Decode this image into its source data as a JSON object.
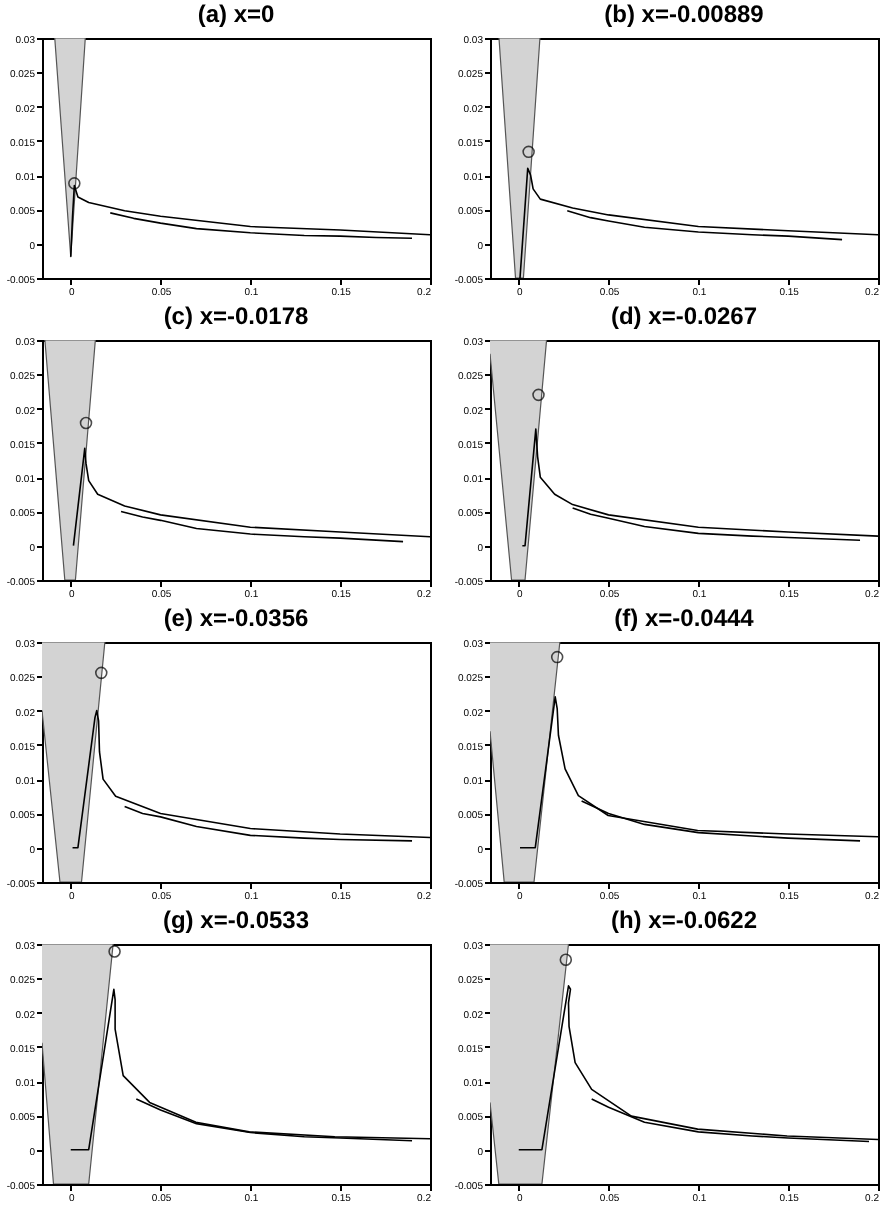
{
  "chart_data": [
    {
      "type": "line",
      "title": "(a) x=0",
      "xlim": [
        -0.016,
        0.2
      ],
      "ylim": [
        -0.005,
        0.03
      ],
      "xticks": [
        0,
        0.05,
        0.1,
        0.15,
        0.2
      ],
      "yticks": [
        -0.005,
        0,
        0.005,
        0.01,
        0.015,
        0.02,
        0.025,
        0.03
      ],
      "grid": false,
      "series": [
        {
          "type": "area",
          "color": "#d3d3d3",
          "x": [
            -0.0089,
            0.0081,
            0,
            -0.0089
          ],
          "values": [
            0.03,
            0.03,
            -0.0019,
            0.03
          ]
        },
        {
          "type": "line",
          "color": "#000000",
          "x": [
            0,
            0.001,
            0.002,
            0.004,
            0.01,
            0.03,
            0.05,
            0.1,
            0.15,
            0.2
          ],
          "values": [
            -0.0019,
            0.004,
            0.0085,
            0.0068,
            0.006,
            0.0048,
            0.004,
            0.0025,
            0.002,
            0.0013
          ]
        },
        {
          "type": "line",
          "color": "#000000",
          "x": [
            0.022,
            0.035,
            0.05,
            0.07,
            0.1,
            0.13,
            0.15,
            0.17,
            0.19
          ],
          "values": [
            0.0045,
            0.0037,
            0.003,
            0.0022,
            0.0016,
            0.0012,
            0.0011,
            0.0009,
            0.0008
          ]
        },
        {
          "type": "scatter",
          "marker": "circle",
          "color": "#000000",
          "x": [
            0.002
          ],
          "values": [
            0.0088
          ]
        }
      ]
    },
    {
      "type": "line",
      "title": "(b) x=-0.00889",
      "xlim": [
        -0.016,
        0.2
      ],
      "ylim": [
        -0.005,
        0.03
      ],
      "xticks": [
        0,
        0.05,
        0.1,
        0.15,
        0.2
      ],
      "yticks": [
        -0.005,
        0,
        0.005,
        0.01,
        0.015,
        0.02,
        0.025,
        0.03
      ],
      "grid": false,
      "series": [
        {
          "type": "area",
          "color": "#d3d3d3",
          "x": [
            -0.011,
            0.0118,
            0.0026,
            -0.0018,
            -0.011
          ],
          "values": [
            0.03,
            0.03,
            -0.005,
            -0.005,
            0.03
          ]
        },
        {
          "type": "line",
          "color": "#000000",
          "x": [
            0.0007,
            0.005,
            0.0066,
            0.008,
            0.012,
            0.03,
            0.05,
            0.1,
            0.15,
            0.2
          ],
          "values": [
            -0.005,
            0.011,
            0.01,
            0.008,
            0.0065,
            0.0052,
            0.0042,
            0.0025,
            0.0019,
            0.0013
          ]
        },
        {
          "type": "line",
          "color": "#000000",
          "x": [
            0.027,
            0.04,
            0.05,
            0.07,
            0.1,
            0.13,
            0.15,
            0.18
          ],
          "values": [
            0.0048,
            0.0038,
            0.0033,
            0.0024,
            0.0017,
            0.0013,
            0.0011,
            0.0006
          ]
        },
        {
          "type": "scatter",
          "marker": "circle",
          "color": "#000000",
          "x": [
            0.0055
          ],
          "values": [
            0.0134
          ]
        }
      ]
    },
    {
      "type": "line",
      "title": "(c) x=-0.0178",
      "xlim": [
        -0.016,
        0.2
      ],
      "ylim": [
        -0.005,
        0.03
      ],
      "xticks": [
        0,
        0.05,
        0.1,
        0.15,
        0.2
      ],
      "yticks": [
        -0.005,
        0,
        0.005,
        0.01,
        0.015,
        0.02,
        0.025,
        0.03
      ],
      "grid": false,
      "series": [
        {
          "type": "area",
          "color": "#d3d3d3",
          "x": [
            -0.0144,
            0.0137,
            0.0026,
            -0.0033,
            -0.0144
          ],
          "values": [
            0.03,
            0.03,
            -0.005,
            -0.005,
            0.03
          ]
        },
        {
          "type": "line",
          "color": "#000000",
          "x": [
            0.0015,
            0.0078,
            0.0085,
            0.01,
            0.015,
            0.03,
            0.05,
            0.1,
            0.15,
            0.2
          ],
          "values": [
            0,
            0.0142,
            0.012,
            0.0095,
            0.0075,
            0.0058,
            0.0045,
            0.0027,
            0.002,
            0.0013
          ]
        },
        {
          "type": "line",
          "color": "#000000",
          "x": [
            0.028,
            0.04,
            0.05,
            0.07,
            0.1,
            0.13,
            0.15,
            0.185
          ],
          "values": [
            0.005,
            0.0042,
            0.0037,
            0.0025,
            0.0017,
            0.0013,
            0.0011,
            0.0006
          ]
        },
        {
          "type": "scatter",
          "marker": "circle",
          "color": "#000000",
          "x": [
            0.0085
          ],
          "values": [
            0.0179
          ]
        }
      ]
    },
    {
      "type": "line",
      "title": "(d) x=-0.0267",
      "xlim": [
        -0.016,
        0.2
      ],
      "ylim": [
        -0.005,
        0.03
      ],
      "xticks": [
        0,
        0.05,
        0.1,
        0.15,
        0.2
      ],
      "yticks": [
        -0.005,
        0,
        0.005,
        0.01,
        0.015,
        0.02,
        0.025,
        0.03
      ],
      "grid": false,
      "series": [
        {
          "type": "area",
          "color": "#d3d3d3",
          "x": [
            -0.016,
            0.0155,
            0.0035,
            -0.004,
            -0.016
          ],
          "values": [
            0.03,
            0.03,
            -0.005,
            -0.005,
            0.028
          ]
        },
        {
          "type": "line",
          "color": "#000000",
          "x": [
            0.002,
            0.0035,
            0.0095,
            0.0105,
            0.012,
            0.02,
            0.03,
            0.05,
            0.1,
            0.15,
            0.2
          ],
          "values": [
            0,
            0,
            0.017,
            0.013,
            0.01,
            0.0075,
            0.006,
            0.0045,
            0.0027,
            0.002,
            0.0014
          ]
        },
        {
          "type": "line",
          "color": "#000000",
          "x": [
            0.03,
            0.04,
            0.05,
            0.07,
            0.1,
            0.13,
            0.15,
            0.19
          ],
          "values": [
            0.0055,
            0.0046,
            0.004,
            0.0028,
            0.0018,
            0.0014,
            0.0012,
            0.0008
          ]
        },
        {
          "type": "scatter",
          "marker": "circle",
          "color": "#000000",
          "x": [
            0.011
          ],
          "values": [
            0.022
          ]
        }
      ]
    },
    {
      "type": "line",
      "title": "(e) x=-0.0356",
      "xlim": [
        -0.016,
        0.2
      ],
      "ylim": [
        -0.005,
        0.03
      ],
      "xticks": [
        0,
        0.05,
        0.1,
        0.15,
        0.2
      ],
      "yticks": [
        -0.005,
        0,
        0.005,
        0.01,
        0.015,
        0.02,
        0.025,
        0.03
      ],
      "grid": false,
      "series": [
        {
          "type": "area",
          "color": "#d3d3d3",
          "x": [
            -0.016,
            0.019,
            0.006,
            -0.006,
            -0.016
          ],
          "values": [
            0.03,
            0.03,
            -0.005,
            -0.005,
            0.02
          ]
        },
        {
          "type": "line",
          "color": "#000000",
          "x": [
            0.001,
            0.004,
            0.0135,
            0.0145,
            0.0155,
            0.016,
            0.018,
            0.025,
            0.05,
            0.1,
            0.15,
            0.2
          ],
          "values": [
            0,
            0,
            0.019,
            0.02,
            0.0185,
            0.014,
            0.01,
            0.0075,
            0.005,
            0.0028,
            0.002,
            0.0015
          ]
        },
        {
          "type": "line",
          "color": "#000000",
          "x": [
            0.03,
            0.04,
            0.05,
            0.07,
            0.1,
            0.13,
            0.15,
            0.19
          ],
          "values": [
            0.006,
            0.005,
            0.0045,
            0.0031,
            0.0018,
            0.0014,
            0.0012,
            0.001
          ]
        },
        {
          "type": "scatter",
          "marker": "circle",
          "color": "#000000",
          "x": [
            0.017
          ],
          "values": [
            0.0255
          ]
        }
      ]
    },
    {
      "type": "line",
      "title": "(f) x=-0.0444",
      "xlim": [
        -0.016,
        0.2
      ],
      "ylim": [
        -0.005,
        0.03
      ],
      "xticks": [
        0,
        0.05,
        0.1,
        0.15,
        0.2
      ],
      "yticks": [
        -0.005,
        0,
        0.005,
        0.01,
        0.015,
        0.02,
        0.025,
        0.03
      ],
      "grid": false,
      "series": [
        {
          "type": "area",
          "color": "#d3d3d3",
          "x": [
            -0.016,
            0.0229,
            0.0085,
            -0.0081,
            -0.016
          ],
          "values": [
            0.03,
            0.03,
            -0.005,
            -0.005,
            0.017
          ]
        },
        {
          "type": "line",
          "color": "#000000",
          "x": [
            0.0007,
            0.0092,
            0.0203,
            0.0214,
            0.0221,
            0.0258,
            0.0332,
            0.0498,
            0.0996,
            0.1494,
            0.2
          ],
          "values": [
            0,
            0,
            0.022,
            0.0203,
            0.0164,
            0.0115,
            0.0076,
            0.0047,
            0.0025,
            0.002,
            0.0016
          ]
        },
        {
          "type": "line",
          "color": "#000000",
          "x": [
            0.035,
            0.05,
            0.07,
            0.1,
            0.13,
            0.15,
            0.19
          ],
          "values": [
            0.0068,
            0.005,
            0.0034,
            0.0022,
            0.0017,
            0.0014,
            0.001
          ]
        },
        {
          "type": "scatter",
          "marker": "circle",
          "color": "#000000",
          "x": [
            0.0214
          ],
          "values": [
            0.0278
          ]
        }
      ]
    },
    {
      "type": "line",
      "title": "(g) x=-0.0533",
      "xlim": [
        -0.016,
        0.2
      ],
      "ylim": [
        -0.005,
        0.03
      ],
      "xticks": [
        0,
        0.05,
        0.1,
        0.15,
        0.2
      ],
      "yticks": [
        -0.005,
        0,
        0.005,
        0.01,
        0.015,
        0.02,
        0.025,
        0.03
      ],
      "grid": false,
      "series": [
        {
          "type": "area",
          "color": "#d3d3d3",
          "x": [
            -0.016,
            0.0236,
            0.01,
            -0.0096,
            -0.016
          ],
          "values": [
            0.03,
            0.03,
            -0.005,
            -0.005,
            0.0156
          ]
        },
        {
          "type": "line",
          "color": "#000000",
          "x": [
            0,
            0.01,
            0.024,
            0.0247,
            0.0247,
            0.0292,
            0.0439,
            0.0697,
            0.0993,
            0.147,
            0.2
          ],
          "values": [
            0,
            0,
            0.0234,
            0.0219,
            0.0176,
            0.0108,
            0.0069,
            0.004,
            0.0026,
            0.0019,
            0.0016
          ]
        },
        {
          "type": "line",
          "color": "#000000",
          "x": [
            0.0365,
            0.05,
            0.07,
            0.1,
            0.13,
            0.15,
            0.19
          ],
          "values": [
            0.0074,
            0.0058,
            0.0038,
            0.0025,
            0.0019,
            0.0017,
            0.0013
          ]
        },
        {
          "type": "scatter",
          "marker": "circle",
          "color": "#000000",
          "x": [
            0.0244
          ],
          "values": [
            0.0289
          ]
        }
      ]
    },
    {
      "type": "line",
      "title": "(h) x=-0.0622",
      "xlim": [
        -0.016,
        0.2
      ],
      "ylim": [
        -0.005,
        0.03
      ],
      "xticks": [
        0,
        0.05,
        0.1,
        0.15,
        0.2
      ],
      "yticks": [
        -0.005,
        0,
        0.005,
        0.01,
        0.015,
        0.02,
        0.025,
        0.03
      ],
      "grid": false,
      "series": [
        {
          "type": "area",
          "color": "#d3d3d3",
          "x": [
            -0.016,
            0.0277,
            0.0129,
            -0.0111,
            -0.016
          ],
          "values": [
            0.03,
            0.03,
            -0.005,
            -0.005,
            0.0069
          ]
        },
        {
          "type": "line",
          "color": "#000000",
          "x": [
            0,
            0.0129,
            0.0277,
            0.0288,
            0.0277,
            0.028,
            0.0314,
            0.0406,
            0.0627,
            0.0996,
            0.1494,
            0.2
          ],
          "values": [
            0,
            0,
            0.0239,
            0.0234,
            0.0214,
            0.018,
            0.0127,
            0.0088,
            0.0049,
            0.003,
            0.002,
            0.0015
          ]
        },
        {
          "type": "line",
          "color": "#000000",
          "x": [
            0.0406,
            0.05,
            0.07,
            0.1,
            0.13,
            0.15,
            0.195
          ],
          "values": [
            0.0074,
            0.0062,
            0.004,
            0.0026,
            0.002,
            0.0017,
            0.0012
          ]
        },
        {
          "type": "scatter",
          "marker": "circle",
          "color": "#000000",
          "x": [
            0.0262
          ],
          "values": [
            0.0277
          ]
        }
      ]
    }
  ]
}
